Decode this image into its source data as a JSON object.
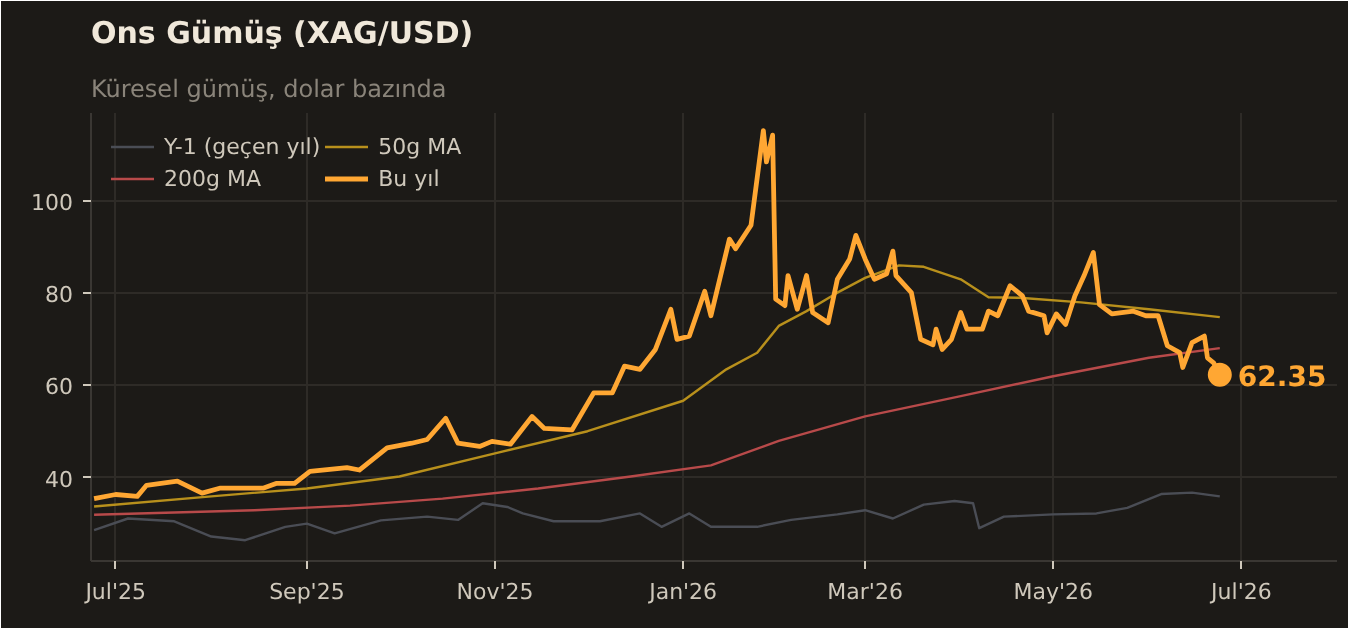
{
  "chart_data": {
    "type": "line",
    "title": "Ons Gümüş (XAG/USD)",
    "subtitle": "Küresel gümüş, dolar bazında",
    "xlim": [
      "2025-06-23",
      "2026-08-01"
    ],
    "ylim": [
      22,
      119
    ],
    "xticks": [
      {
        "value": "2025-07-01",
        "label": "Jul'25"
      },
      {
        "value": "2025-09-01",
        "label": "Sep'25"
      },
      {
        "value": "2025-11-01",
        "label": "Nov'25"
      },
      {
        "value": "2026-01-01",
        "label": "Jan'26"
      },
      {
        "value": "2026-03-01",
        "label": "Mar'26"
      },
      {
        "value": "2026-05-01",
        "label": "May'26"
      },
      {
        "value": "2026-07-01",
        "label": "Jul'26"
      }
    ],
    "yticks": [
      40,
      60,
      80,
      100
    ],
    "grid": true,
    "legend": "top left",
    "marker": "none",
    "line_style": "solid",
    "annotations": [
      {
        "text": "62.35",
        "x": "2026-06-24",
        "y": 62.35
      }
    ],
    "series": [
      {
        "name": "Y-1 (geçen yıl)",
        "color": "#4a4d55",
        "x": [
          "2025-06-24",
          "2025-07-05",
          "2025-07-20",
          "2025-08-01",
          "2025-08-12",
          "2025-08-25",
          "2025-09-01",
          "2025-09-10",
          "2025-09-25",
          "2025-10-10",
          "2025-10-20",
          "2025-10-28",
          "2025-11-05",
          "2025-11-10",
          "2025-11-20",
          "2025-12-05",
          "2025-12-18",
          "2025-12-25",
          "2026-01-03",
          "2026-01-10",
          "2026-01-25",
          "2026-02-05",
          "2026-02-20",
          "2026-03-01",
          "2026-03-10",
          "2026-03-20",
          "2026-03-30",
          "2026-04-05",
          "2026-04-07",
          "2026-04-15",
          "2026-05-01",
          "2026-05-15",
          "2026-05-25",
          "2026-06-05",
          "2026-06-15",
          "2026-06-24"
        ],
        "values": [
          28.7,
          31.2,
          30.6,
          27.3,
          26.5,
          29.4,
          30.1,
          28,
          30.8,
          31.6,
          30.9,
          34.5,
          33.7,
          32.3,
          30.6,
          30.6,
          32.3,
          29.4,
          32.3,
          29.4,
          29.4,
          30.9,
          32.1,
          33,
          31.2,
          34.2,
          35,
          34.5,
          29.1,
          31.6,
          32.1,
          32.3,
          33.5,
          36.5,
          36.8,
          36
        ]
      },
      {
        "name": "50g MA",
        "color": "#b8901c",
        "x": [
          "2025-06-24",
          "2025-08-01",
          "2025-09-01",
          "2025-10-01",
          "2025-11-01",
          "2025-12-01",
          "2026-01-01",
          "2026-01-15",
          "2026-01-25",
          "2026-02-01",
          "2026-02-10",
          "2026-02-20",
          "2026-03-01",
          "2026-03-12",
          "2026-03-20",
          "2026-04-01",
          "2026-04-10",
          "2026-04-20",
          "2026-05-10",
          "2026-06-01",
          "2026-06-24"
        ],
        "values": [
          33.8,
          36,
          37.7,
          40.3,
          45.3,
          50.1,
          56.7,
          63.5,
          67.1,
          72.9,
          76.1,
          80.1,
          83.3,
          86,
          85.7,
          83,
          79.1,
          79,
          78,
          76.5,
          74.8
        ]
      },
      {
        "name": "200g MA",
        "color": "#b84a4a",
        "x": [
          "2025-06-24",
          "2025-08-15",
          "2025-09-15",
          "2025-10-15",
          "2025-11-15",
          "2025-12-15",
          "2026-01-10",
          "2026-02-01",
          "2026-03-01",
          "2026-04-01",
          "2026-05-01",
          "2026-06-01",
          "2026-06-24"
        ],
        "values": [
          32,
          33,
          34,
          35.5,
          37.7,
          40.3,
          42.7,
          48,
          53.3,
          57.7,
          62,
          66,
          68.1
        ]
      },
      {
        "name": "Bu yıl",
        "color": "#ffa733",
        "x": [
          "2025-06-24",
          "2025-07-01",
          "2025-07-08",
          "2025-07-11",
          "2025-07-21",
          "2025-07-29",
          "2025-08-04",
          "2025-08-18",
          "2025-08-22",
          "2025-08-28",
          "2025-09-02",
          "2025-09-14",
          "2025-09-18",
          "2025-09-27",
          "2025-10-05",
          "2025-10-10",
          "2025-10-16",
          "2025-10-20",
          "2025-10-27",
          "2025-10-31",
          "2025-11-06",
          "2025-11-13",
          "2025-11-17",
          "2025-11-26",
          "2025-12-03",
          "2025-12-09",
          "2025-12-13",
          "2025-12-18",
          "2025-12-23",
          "2025-12-28",
          "2025-12-30",
          "2026-01-03",
          "2026-01-08",
          "2026-01-10",
          "2026-01-16",
          "2026-01-18",
          "2026-01-23",
          "2026-01-27",
          "2026-01-28",
          "2026-01-30",
          "2026-01-31",
          "2026-02-03",
          "2026-02-04",
          "2026-02-07",
          "2026-02-10",
          "2026-02-12",
          "2026-02-17",
          "2026-02-20",
          "2026-02-24",
          "2026-02-26",
          "2026-03-01",
          "2026-03-04",
          "2026-03-08",
          "2026-03-10",
          "2026-03-11",
          "2026-03-16",
          "2026-03-19",
          "2026-03-23",
          "2026-03-24",
          "2026-03-26",
          "2026-03-29",
          "2026-04-01",
          "2026-04-03",
          "2026-04-08",
          "2026-04-10",
          "2026-04-13",
          "2026-04-17",
          "2026-04-21",
          "2026-04-23",
          "2026-04-28",
          "2026-04-29",
          "2026-05-02",
          "2026-05-05",
          "2026-05-08",
          "2026-05-11",
          "2026-05-14",
          "2026-05-16",
          "2026-05-20",
          "2026-05-27",
          "2026-05-31",
          "2026-06-04",
          "2026-06-07",
          "2026-06-11",
          "2026-06-12",
          "2026-06-15",
          "2026-06-19",
          "2026-06-20",
          "2026-06-22",
          "2026-06-24"
        ],
        "values": [
          35.5,
          36.4,
          36,
          38.4,
          39.3,
          36.7,
          37.8,
          37.8,
          38.8,
          38.8,
          41.4,
          42.2,
          41.7,
          46.5,
          47.5,
          48.3,
          52.9,
          47.5,
          46.8,
          47.9,
          47.3,
          53.3,
          50.7,
          50.4,
          58.4,
          58.4,
          64.2,
          63.5,
          67.8,
          76.5,
          70,
          70.7,
          80.4,
          75.1,
          91.7,
          89.6,
          94.7,
          115.2,
          108.4,
          114.2,
          78.7,
          77.3,
          83.8,
          76.5,
          83.8,
          75.8,
          73.6,
          83,
          87.4,
          92.5,
          87.4,
          83,
          84.2,
          89.1,
          83.8,
          80.1,
          70,
          68.8,
          72.2,
          67.8,
          70,
          75.8,
          72.2,
          72.2,
          76.1,
          75.1,
          81.6,
          79.4,
          76.1,
          75.1,
          71.4,
          75.5,
          73.2,
          79.4,
          83.8,
          88.8,
          77.5,
          75.5,
          76.1,
          75.1,
          75.1,
          68.6,
          67.1,
          63.9,
          69.3,
          70.7,
          66,
          64.9,
          62.35
        ]
      }
    ]
  }
}
